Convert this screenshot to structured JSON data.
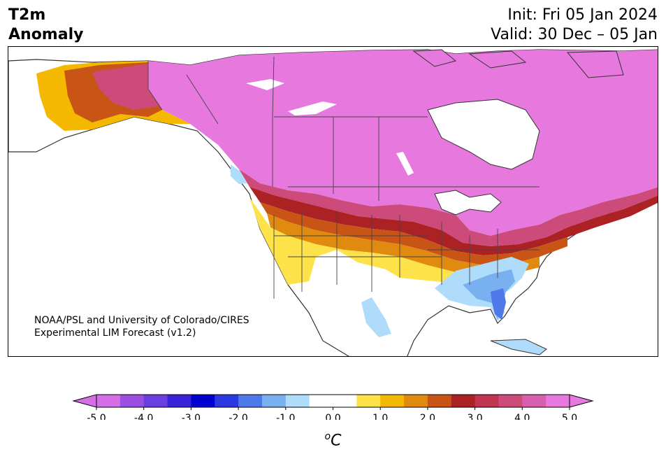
{
  "header": {
    "title_line1": "T2m",
    "title_line2": "Anomaly",
    "init": "Init: Fri 05 Jan 2024",
    "valid": "Valid: 30 Dec – 05 Jan"
  },
  "credit": {
    "line1": "NOAA/PSL and University of Colorado/CIRES",
    "line2": "Experimental LIM Forecast (v1.2)"
  },
  "colorbar": {
    "ticks": [
      "-5.0",
      "-4.0",
      "-3.0",
      "-2.0",
      "-1.0",
      "0.0",
      "1.0",
      "2.0",
      "3.0",
      "4.0",
      "5.0"
    ],
    "unit_base": "C",
    "unit_sup": "o",
    "colors": [
      "#d56fe8",
      "#9b4fe0",
      "#6a3fe0",
      "#3a22d6",
      "#0000d0",
      "#2a3ae0",
      "#4f78e8",
      "#78b0f0",
      "#aedcfa",
      "#ffffff",
      "#ffffff",
      "#fde24a",
      "#f5b800",
      "#e08a10",
      "#c85416",
      "#ac2224",
      "#c03552",
      "#cc4b7a",
      "#d85fae",
      "#e678de"
    ]
  },
  "colors": {
    "max_pos": "#e678de",
    "ocean": "#ffffff",
    "border": "#333333"
  }
}
